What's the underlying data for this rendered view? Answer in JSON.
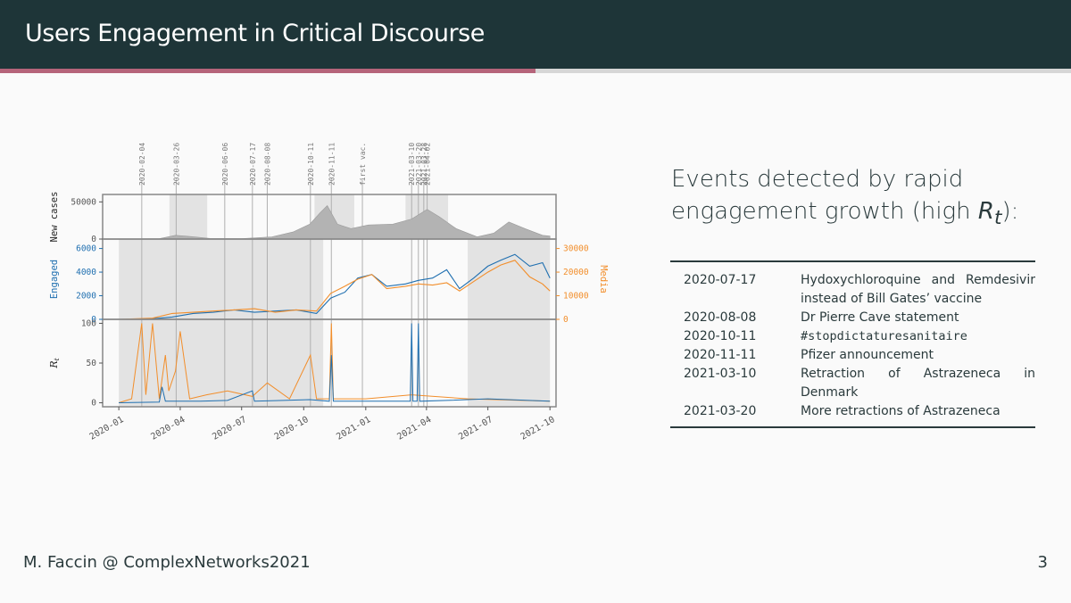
{
  "slide": {
    "title": "Users Engagement in Critical Discourse",
    "footer_left": "M. Faccin @ ComplexNetworks2021",
    "page_number": "3",
    "progress_fraction": 0.5
  },
  "events_panel": {
    "heading": "Events detected by rapid engagement growth (high ",
    "heading_symbol": "R",
    "heading_symbol_sub": "t",
    "heading_tail": "):",
    "rows": [
      {
        "date": "2020-07-17",
        "text": "Hydoxychloroquine and Remdesivir instead of Bill Gates’ vaccine",
        "mono": false
      },
      {
        "date": "2020-08-08",
        "text": "Dr Pierre Cave statement",
        "mono": false
      },
      {
        "date": "2020-10-11",
        "text": "#stopdictaturesanitaire",
        "mono": true
      },
      {
        "date": "2020-11-11",
        "text": "Pfizer announcement",
        "mono": false
      },
      {
        "date": "2021-03-10",
        "text": "Retraction of Astrazeneca in Denmark",
        "mono": false
      },
      {
        "date": "2021-03-20",
        "text": "More retractions of Astrazeneca",
        "mono": false
      }
    ]
  },
  "chart_data": {
    "type": "line",
    "event_labels": [
      "2020-02-04",
      "2020-03-26",
      "2020-06-06",
      "2020-07-17",
      "2020-08-08",
      "2020-10-11",
      "2020-11-11",
      "first vac.",
      "2021-03-10",
      "2021-03-20",
      "2021-03-28",
      "2021-04-02"
    ],
    "event_dates": [
      "2020-02-04",
      "2020-03-26",
      "2020-06-06",
      "2020-07-17",
      "2020-08-08",
      "2020-10-11",
      "2020-11-11",
      "2020-12-27",
      "2021-03-10",
      "2021-03-20",
      "2021-03-28",
      "2021-04-02"
    ],
    "shaded_periods": [
      {
        "panel": "new_cases",
        "start": "2020-03-16",
        "end": "2020-05-11"
      },
      {
        "panel": "new_cases",
        "start": "2020-10-17",
        "end": "2020-12-15"
      },
      {
        "panel": "new_cases",
        "start": "2021-03-01",
        "end": "2021-05-03"
      },
      {
        "panel": "lower",
        "start": "2020-01-01",
        "end": "2020-10-30"
      },
      {
        "panel": "lower",
        "start": "2021-06-01",
        "end": "2021-10-01"
      }
    ],
    "x_ticks": [
      "2020-01",
      "2020-04",
      "2020-07",
      "2020-10",
      "2021-01",
      "2021-04",
      "2021-07",
      "2021-10"
    ],
    "x_range": [
      "2019-12-08",
      "2021-10-10"
    ],
    "panels": [
      {
        "name": "new_cases",
        "ylabel": "New cases",
        "yticks": [
          "0",
          "50000"
        ],
        "ylim": [
          0,
          60000
        ],
        "series": [
          {
            "name": "New cases",
            "color": "#8c8c8c",
            "dates": [
              "2020-01-01",
              "2020-03-01",
              "2020-03-25",
              "2020-04-15",
              "2020-05-15",
              "2020-07-01",
              "2020-08-15",
              "2020-09-15",
              "2020-10-10",
              "2020-10-25",
              "2020-11-05",
              "2020-11-20",
              "2020-12-10",
              "2021-01-05",
              "2021-02-10",
              "2021-03-10",
              "2021-04-02",
              "2021-04-20",
              "2021-05-15",
              "2021-06-15",
              "2021-07-10",
              "2021-08-01",
              "2021-08-25",
              "2021-09-20",
              "2021-10-01"
            ],
            "values": [
              0,
              500,
              5000,
              3500,
              800,
              600,
              3000,
              9500,
              20000,
              35000,
              45000,
              20000,
              14000,
              19000,
              20000,
              27000,
              40000,
              30000,
              14000,
              3000,
              8000,
              23000,
              14000,
              5000,
              4000
            ]
          }
        ]
      },
      {
        "name": "engagement",
        "ylabel_left": "Engaged",
        "ylabel_right": "Media",
        "yticks_left": [
          "0",
          "2000",
          "4000",
          "6000"
        ],
        "yticks_right": [
          "0",
          "10000",
          "20000",
          "30000"
        ],
        "ylim_left": [
          0,
          6800
        ],
        "ylim_right": [
          0,
          34000
        ],
        "series": [
          {
            "name": "Engaged",
            "color": "#1f6fb0",
            "axis": "left",
            "dates": [
              "2020-01-01",
              "2020-02-20",
              "2020-03-20",
              "2020-04-20",
              "2020-05-20",
              "2020-06-20",
              "2020-07-20",
              "2020-08-20",
              "2020-09-20",
              "2020-10-20",
              "2020-11-10",
              "2020-12-01",
              "2020-12-20",
              "2021-01-10",
              "2021-02-01",
              "2021-03-01",
              "2021-03-20",
              "2021-04-10",
              "2021-05-01",
              "2021-05-20",
              "2021-06-10",
              "2021-07-01",
              "2021-07-20",
              "2021-08-10",
              "2021-09-01",
              "2021-09-20",
              "2021-10-01"
            ],
            "values": [
              0,
              50,
              200,
              500,
              600,
              800,
              600,
              700,
              800,
              500,
              1800,
              2300,
              3500,
              3800,
              2800,
              3000,
              3300,
              3500,
              4200,
              2600,
              3500,
              4500,
              5000,
              5500,
              4500,
              4800,
              3500
            ]
          },
          {
            "name": "Media",
            "color": "#f28e2b",
            "axis": "right",
            "dates": [
              "2020-01-01",
              "2020-02-20",
              "2020-03-20",
              "2020-04-20",
              "2020-05-20",
              "2020-06-20",
              "2020-07-20",
              "2020-08-20",
              "2020-09-20",
              "2020-10-20",
              "2020-11-10",
              "2020-12-01",
              "2020-12-20",
              "2021-01-10",
              "2021-02-01",
              "2021-03-01",
              "2021-03-20",
              "2021-04-10",
              "2021-05-01",
              "2021-05-20",
              "2021-06-10",
              "2021-07-01",
              "2021-07-20",
              "2021-08-10",
              "2021-09-01",
              "2021-09-20",
              "2021-10-01"
            ],
            "values": [
              0,
              500,
              2500,
              3000,
              3500,
              4000,
              4500,
              3000,
              4000,
              3500,
              11000,
              14000,
              17000,
              19000,
              13000,
              14000,
              15000,
              14500,
              15500,
              12000,
              16000,
              20000,
              23000,
              25000,
              18000,
              15000,
              12000
            ]
          }
        ]
      },
      {
        "name": "rt",
        "ylabel": "R",
        "ylabel_sub": "t",
        "yticks": [
          "0",
          "50",
          "100"
        ],
        "ylim": [
          -5,
          105
        ],
        "series": [
          {
            "name": "Engaged",
            "color": "#1f6fb0",
            "dates": [
              "2020-01-01",
              "2020-03-01",
              "2020-03-05",
              "2020-03-10",
              "2020-05-01",
              "2020-06-10",
              "2020-07-17",
              "2020-07-20",
              "2020-09-01",
              "2020-10-10",
              "2020-11-08",
              "2020-11-11",
              "2020-11-14",
              "2021-01-01",
              "2021-03-08",
              "2021-03-10",
              "2021-03-12",
              "2021-03-18",
              "2021-03-20",
              "2021-03-22",
              "2021-05-01",
              "2021-07-01",
              "2021-10-01"
            ],
            "values": [
              0,
              1,
              20,
              2,
              2,
              3,
              15,
              2,
              3,
              4,
              2,
              60,
              2,
              2,
              2,
              100,
              2,
              2,
              100,
              2,
              3,
              5,
              2
            ]
          },
          {
            "name": "Media",
            "color": "#f28e2b",
            "dates": [
              "2020-01-01",
              "2020-01-20",
              "2020-02-04",
              "2020-02-10",
              "2020-02-20",
              "2020-03-01",
              "2020-03-10",
              "2020-03-15",
              "2020-03-25",
              "2020-04-01",
              "2020-04-15",
              "2020-05-10",
              "2020-06-10",
              "2020-07-17",
              "2020-08-08",
              "2020-09-10",
              "2020-10-11",
              "2020-10-20",
              "2020-11-08",
              "2020-11-11",
              "2020-11-14",
              "2021-01-01",
              "2021-03-10",
              "2021-06-01",
              "2021-10-01"
            ],
            "values": [
              0,
              5,
              100,
              10,
              100,
              5,
              60,
              15,
              40,
              90,
              5,
              10,
              15,
              8,
              25,
              5,
              60,
              5,
              5,
              100,
              5,
              5,
              10,
              5,
              2
            ]
          }
        ]
      }
    ],
    "grid": false
  }
}
